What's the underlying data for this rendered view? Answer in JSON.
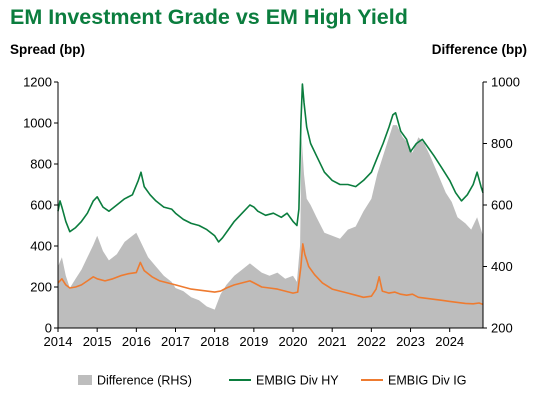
{
  "chart_data": {
    "type": "line",
    "title": "EM Investment Grade vs EM High Yield",
    "ylabel_left": "Spread (bp)",
    "ylabel_right": "Difference (bp)",
    "x_ticks": [
      "2014",
      "2015",
      "2016",
      "2017",
      "2018",
      "2019",
      "2020",
      "2021",
      "2022",
      "2023",
      "2024"
    ],
    "x_range": [
      2014.0,
      2024.85
    ],
    "ylim_left": [
      0,
      1200
    ],
    "ylim_right": [
      200,
      1000
    ],
    "yticks_left": [
      0,
      200,
      400,
      600,
      800,
      1000,
      1200
    ],
    "yticks_right": [
      200,
      400,
      600,
      800,
      1000
    ],
    "grid": false,
    "legend_position": "bottom",
    "colors": {
      "difference": "#bdbdbd",
      "hy": "#0b7d3e",
      "ig": "#ee7b30",
      "title": "#0b7d3e"
    },
    "series": [
      {
        "name": "Difference (RHS)",
        "axis": "right",
        "style": "area",
        "points": [
          [
            2014.0,
            400
          ],
          [
            2014.1,
            430
          ],
          [
            2014.2,
            370
          ],
          [
            2014.3,
            330
          ],
          [
            2014.45,
            360
          ],
          [
            2014.6,
            390
          ],
          [
            2014.75,
            430
          ],
          [
            2014.9,
            470
          ],
          [
            2015.0,
            500
          ],
          [
            2015.15,
            450
          ],
          [
            2015.3,
            420
          ],
          [
            2015.5,
            440
          ],
          [
            2015.7,
            480
          ],
          [
            2015.9,
            500
          ],
          [
            2016.0,
            510
          ],
          [
            2016.15,
            470
          ],
          [
            2016.3,
            430
          ],
          [
            2016.5,
            400
          ],
          [
            2016.7,
            370
          ],
          [
            2016.9,
            350
          ],
          [
            2017.0,
            330
          ],
          [
            2017.2,
            320
          ],
          [
            2017.4,
            300
          ],
          [
            2017.6,
            290
          ],
          [
            2017.8,
            270
          ],
          [
            2018.0,
            260
          ],
          [
            2018.15,
            310
          ],
          [
            2018.3,
            340
          ],
          [
            2018.5,
            370
          ],
          [
            2018.7,
            390
          ],
          [
            2018.9,
            410
          ],
          [
            2019.0,
            400
          ],
          [
            2019.2,
            380
          ],
          [
            2019.4,
            370
          ],
          [
            2019.6,
            380
          ],
          [
            2019.8,
            360
          ],
          [
            2020.0,
            370
          ],
          [
            2020.1,
            350
          ],
          [
            2020.18,
            470
          ],
          [
            2020.22,
            820
          ],
          [
            2020.28,
            700
          ],
          [
            2020.35,
            620
          ],
          [
            2020.45,
            600
          ],
          [
            2020.6,
            560
          ],
          [
            2020.8,
            510
          ],
          [
            2021.0,
            500
          ],
          [
            2021.2,
            490
          ],
          [
            2021.4,
            520
          ],
          [
            2021.6,
            530
          ],
          [
            2021.8,
            580
          ],
          [
            2022.0,
            620
          ],
          [
            2022.15,
            700
          ],
          [
            2022.3,
            760
          ],
          [
            2022.45,
            820
          ],
          [
            2022.55,
            860
          ],
          [
            2022.65,
            860
          ],
          [
            2022.8,
            820
          ],
          [
            2022.95,
            800
          ],
          [
            2023.05,
            770
          ],
          [
            2023.2,
            820
          ],
          [
            2023.35,
            800
          ],
          [
            2023.5,
            760
          ],
          [
            2023.7,
            700
          ],
          [
            2023.9,
            640
          ],
          [
            2024.05,
            610
          ],
          [
            2024.2,
            560
          ],
          [
            2024.4,
            540
          ],
          [
            2024.55,
            520
          ],
          [
            2024.7,
            560
          ],
          [
            2024.85,
            500
          ]
        ]
      },
      {
        "name": "EMBIG Div HY",
        "axis": "left",
        "style": "line",
        "points": [
          [
            2014.0,
            570
          ],
          [
            2014.05,
            620
          ],
          [
            2014.1,
            590
          ],
          [
            2014.2,
            520
          ],
          [
            2014.3,
            470
          ],
          [
            2014.45,
            490
          ],
          [
            2014.6,
            520
          ],
          [
            2014.75,
            560
          ],
          [
            2014.9,
            620
          ],
          [
            2015.0,
            640
          ],
          [
            2015.15,
            590
          ],
          [
            2015.3,
            570
          ],
          [
            2015.5,
            600
          ],
          [
            2015.7,
            630
          ],
          [
            2015.9,
            650
          ],
          [
            2016.05,
            720
          ],
          [
            2016.12,
            760
          ],
          [
            2016.2,
            690
          ],
          [
            2016.35,
            650
          ],
          [
            2016.5,
            620
          ],
          [
            2016.7,
            590
          ],
          [
            2016.9,
            580
          ],
          [
            2017.0,
            560
          ],
          [
            2017.2,
            530
          ],
          [
            2017.4,
            510
          ],
          [
            2017.6,
            500
          ],
          [
            2017.8,
            480
          ],
          [
            2018.0,
            450
          ],
          [
            2018.1,
            420
          ],
          [
            2018.2,
            440
          ],
          [
            2018.35,
            480
          ],
          [
            2018.5,
            520
          ],
          [
            2018.7,
            560
          ],
          [
            2018.9,
            600
          ],
          [
            2019.0,
            590
          ],
          [
            2019.1,
            570
          ],
          [
            2019.3,
            550
          ],
          [
            2019.5,
            560
          ],
          [
            2019.7,
            540
          ],
          [
            2019.85,
            560
          ],
          [
            2020.0,
            520
          ],
          [
            2020.1,
            500
          ],
          [
            2020.15,
            580
          ],
          [
            2020.2,
            1000
          ],
          [
            2020.24,
            1190
          ],
          [
            2020.28,
            1100
          ],
          [
            2020.35,
            980
          ],
          [
            2020.45,
            900
          ],
          [
            2020.6,
            840
          ],
          [
            2020.8,
            760
          ],
          [
            2021.0,
            720
          ],
          [
            2021.2,
            700
          ],
          [
            2021.4,
            700
          ],
          [
            2021.6,
            690
          ],
          [
            2021.8,
            720
          ],
          [
            2022.0,
            760
          ],
          [
            2022.15,
            830
          ],
          [
            2022.3,
            900
          ],
          [
            2022.45,
            980
          ],
          [
            2022.55,
            1040
          ],
          [
            2022.62,
            1050
          ],
          [
            2022.75,
            960
          ],
          [
            2022.9,
            920
          ],
          [
            2023.0,
            860
          ],
          [
            2023.15,
            900
          ],
          [
            2023.3,
            920
          ],
          [
            2023.45,
            880
          ],
          [
            2023.6,
            840
          ],
          [
            2023.8,
            780
          ],
          [
            2024.0,
            720
          ],
          [
            2024.15,
            660
          ],
          [
            2024.3,
            620
          ],
          [
            2024.45,
            650
          ],
          [
            2024.6,
            700
          ],
          [
            2024.7,
            760
          ],
          [
            2024.8,
            690
          ],
          [
            2024.85,
            660
          ]
        ]
      },
      {
        "name": "EMBIG Div IG",
        "axis": "left",
        "style": "line",
        "points": [
          [
            2014.0,
            220
          ],
          [
            2014.1,
            240
          ],
          [
            2014.2,
            210
          ],
          [
            2014.3,
            195
          ],
          [
            2014.45,
            200
          ],
          [
            2014.6,
            210
          ],
          [
            2014.75,
            230
          ],
          [
            2014.9,
            250
          ],
          [
            2015.0,
            240
          ],
          [
            2015.2,
            230
          ],
          [
            2015.4,
            240
          ],
          [
            2015.6,
            255
          ],
          [
            2015.8,
            265
          ],
          [
            2016.0,
            270
          ],
          [
            2016.1,
            320
          ],
          [
            2016.2,
            280
          ],
          [
            2016.4,
            250
          ],
          [
            2016.6,
            230
          ],
          [
            2016.8,
            220
          ],
          [
            2017.0,
            210
          ],
          [
            2017.2,
            200
          ],
          [
            2017.4,
            190
          ],
          [
            2017.6,
            185
          ],
          [
            2017.8,
            180
          ],
          [
            2018.0,
            175
          ],
          [
            2018.15,
            180
          ],
          [
            2018.3,
            195
          ],
          [
            2018.5,
            210
          ],
          [
            2018.7,
            220
          ],
          [
            2018.9,
            230
          ],
          [
            2019.0,
            220
          ],
          [
            2019.2,
            200
          ],
          [
            2019.4,
            195
          ],
          [
            2019.6,
            190
          ],
          [
            2019.8,
            180
          ],
          [
            2020.0,
            170
          ],
          [
            2020.12,
            175
          ],
          [
            2020.2,
            300
          ],
          [
            2020.25,
            410
          ],
          [
            2020.3,
            360
          ],
          [
            2020.4,
            300
          ],
          [
            2020.55,
            260
          ],
          [
            2020.75,
            220
          ],
          [
            2021.0,
            190
          ],
          [
            2021.2,
            180
          ],
          [
            2021.4,
            170
          ],
          [
            2021.6,
            160
          ],
          [
            2021.8,
            150
          ],
          [
            2022.0,
            155
          ],
          [
            2022.12,
            190
          ],
          [
            2022.2,
            250
          ],
          [
            2022.28,
            180
          ],
          [
            2022.45,
            170
          ],
          [
            2022.6,
            175
          ],
          [
            2022.75,
            165
          ],
          [
            2022.9,
            160
          ],
          [
            2023.05,
            165
          ],
          [
            2023.2,
            150
          ],
          [
            2023.4,
            145
          ],
          [
            2023.6,
            140
          ],
          [
            2023.8,
            135
          ],
          [
            2024.0,
            130
          ],
          [
            2024.2,
            125
          ],
          [
            2024.4,
            120
          ],
          [
            2024.6,
            118
          ],
          [
            2024.75,
            122
          ],
          [
            2024.85,
            115
          ]
        ]
      }
    ]
  }
}
